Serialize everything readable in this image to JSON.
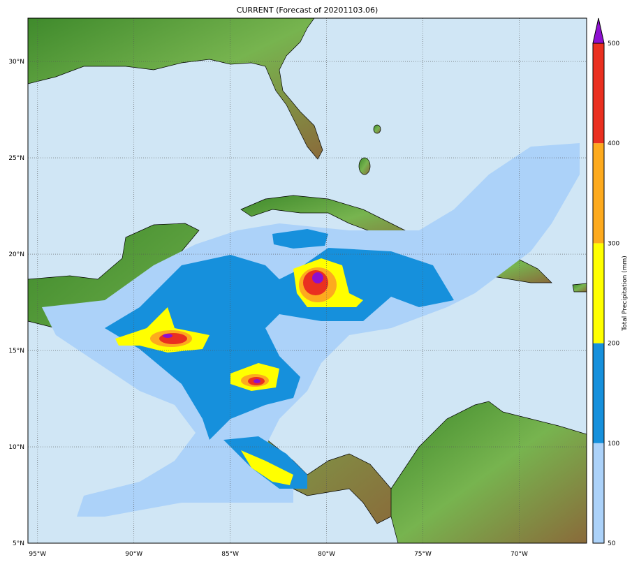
{
  "title": "CURRENT (Forecast of 20201103.06)",
  "map": {
    "extent": {
      "lon": [
        -95.5,
        -66.5
      ],
      "lat": [
        5,
        32.25
      ]
    },
    "lon_ticks": [
      {
        "value": -95,
        "label": "95°W"
      },
      {
        "value": -90,
        "label": "90°W"
      },
      {
        "value": -85,
        "label": "85°W"
      },
      {
        "value": -80,
        "label": "80°W"
      },
      {
        "value": -75,
        "label": "75°W"
      },
      {
        "value": -70,
        "label": "70°W"
      }
    ],
    "lat_ticks": [
      {
        "value": 5,
        "label": "5°N"
      },
      {
        "value": 10,
        "label": "10°N"
      },
      {
        "value": 15,
        "label": "15°N"
      },
      {
        "value": 20,
        "label": "20°N"
      },
      {
        "value": 25,
        "label": "25°N"
      },
      {
        "value": 30,
        "label": "30°N"
      }
    ],
    "gridlines": "dotted",
    "colors": {
      "ocean": "#d0e6f5",
      "land": "#5e9e3c"
    }
  },
  "colorbar": {
    "label": "Total Precipitation (mm)",
    "extend": "max",
    "levels": [
      {
        "from": 50,
        "to": 100,
        "color": "#acd2f9"
      },
      {
        "from": 100,
        "to": 200,
        "color": "#1690dc"
      },
      {
        "from": 200,
        "to": 300,
        "color": "#ffff00"
      },
      {
        "from": 300,
        "to": 400,
        "color": "#fdaa1e"
      },
      {
        "from": 400,
        "to": 500,
        "color": "#ea3020"
      },
      {
        "from": 500,
        "to": null,
        "color": "#8d10d0"
      }
    ],
    "tick_labels": [
      "50",
      "100",
      "200",
      "300",
      "400",
      "500"
    ]
  }
}
